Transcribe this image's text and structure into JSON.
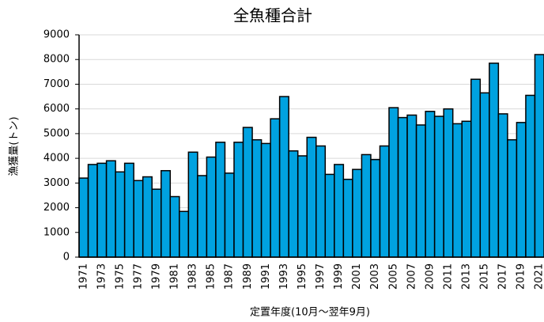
{
  "chart_data": {
    "type": "bar",
    "title": "全魚種合計",
    "x_label": "定置年度(10月～翌年9月)",
    "y_label": "漁獲量(トン)",
    "categories": [
      "1971",
      null,
      "1973",
      null,
      "1975",
      null,
      "1977",
      null,
      "1979",
      null,
      "1981",
      null,
      "1983",
      null,
      "1985",
      null,
      "1987",
      null,
      "1989",
      null,
      "1991",
      null,
      "1993",
      null,
      "1995",
      null,
      "1997",
      null,
      "1999",
      null,
      "2001",
      null,
      "2003",
      null,
      "2005",
      null,
      "2007",
      null,
      "2009",
      null,
      "2011",
      null,
      "2013",
      null,
      "2015",
      null,
      "2017",
      null,
      "2019",
      null,
      "2021"
    ],
    "values": [
      3200,
      3750,
      3800,
      3900,
      3450,
      3800,
      3100,
      3250,
      2750,
      3500,
      2450,
      1850,
      4250,
      3300,
      4050,
      4650,
      3400,
      4650,
      5250,
      4750,
      4600,
      5600,
      6500,
      4300,
      4100,
      4850,
      4500,
      3350,
      3750,
      3150,
      3550,
      4150,
      3950,
      4500,
      6050,
      5650,
      5750,
      5350,
      5900,
      5700,
      6000,
      5400,
      5500,
      7200,
      6650,
      7850,
      5800,
      4750,
      5450,
      6550,
      8200
    ],
    "color": "#00a2e0",
    "ylim": [
      0,
      9000
    ],
    "yticks": [
      0,
      1000,
      2000,
      3000,
      4000,
      5000,
      6000,
      7000,
      8000,
      9000
    ],
    "grid": true
  }
}
